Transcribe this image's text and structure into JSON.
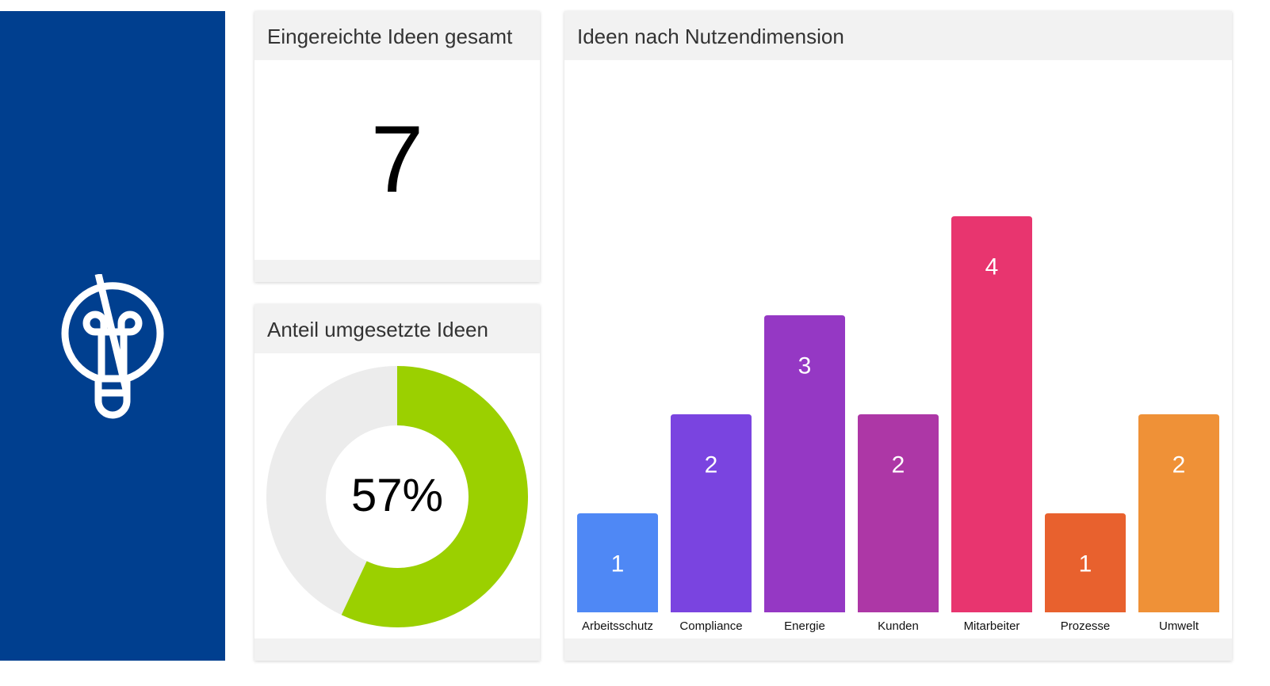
{
  "sidebar": {
    "icon": "lightbulb-icon",
    "color": "#003f8f"
  },
  "total": {
    "title": "Eingereichte Ideen gesamt",
    "value": "7"
  },
  "share": {
    "title": "Anteil umgesetzte Ideen",
    "value_label": "57%",
    "fraction": 0.57,
    "fill_color": "#9bd000",
    "rest_color": "#ececec"
  },
  "chart_data": {
    "type": "bar",
    "title": "Ideen nach Nutzendimension",
    "categories": [
      "Arbeitsschutz",
      "Compliance",
      "Energie",
      "Kunden",
      "Mitarbeiter",
      "Prozesse",
      "Umwelt"
    ],
    "values": [
      1,
      2,
      3,
      2,
      4,
      1,
      2
    ],
    "colors": [
      "#4f88f5",
      "#7a44e0",
      "#9538c4",
      "#ad37a6",
      "#e8356f",
      "#e8612e",
      "#ef9137"
    ],
    "ylim": [
      0,
      4
    ],
    "xlabel": "",
    "ylabel": ""
  }
}
